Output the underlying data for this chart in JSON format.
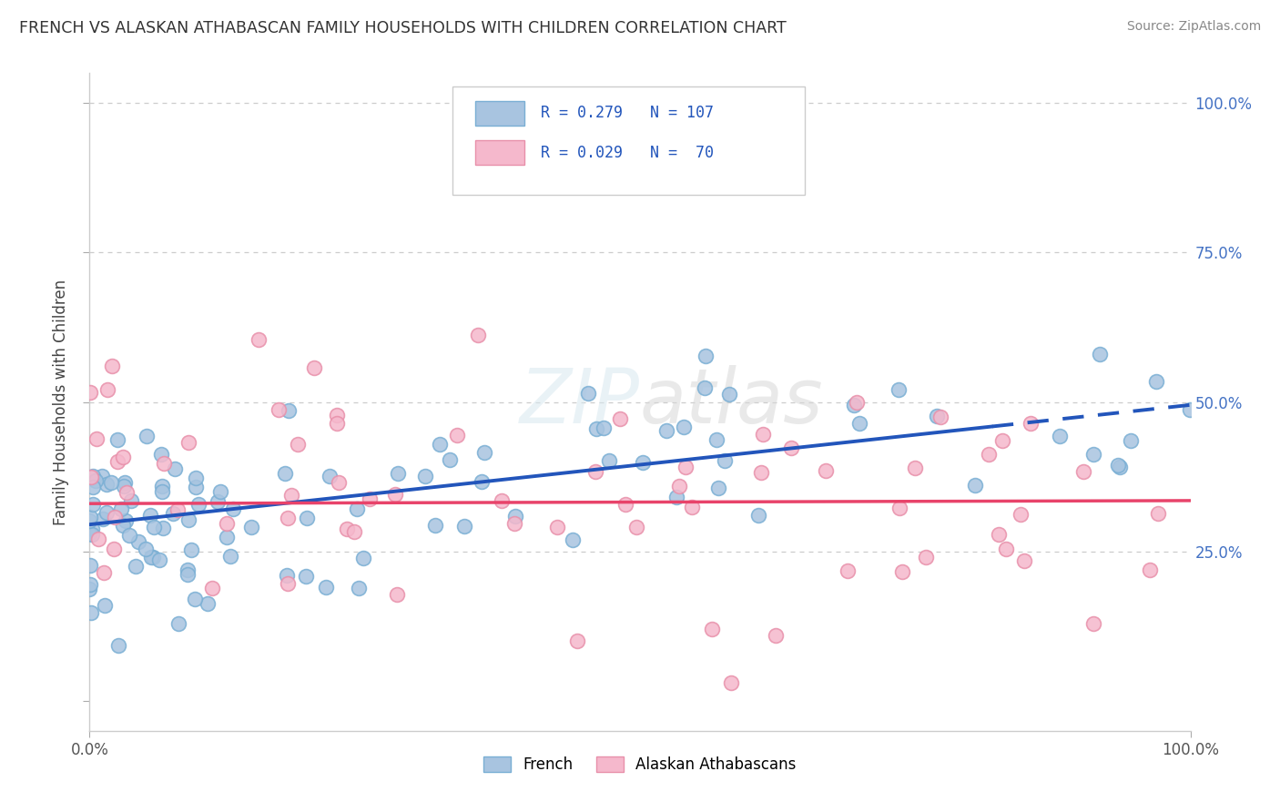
{
  "title": "FRENCH VS ALASKAN ATHABASCAN FAMILY HOUSEHOLDS WITH CHILDREN CORRELATION CHART",
  "source": "Source: ZipAtlas.com",
  "ylabel": "Family Households with Children",
  "french_color": "#a8c4e0",
  "french_edge_color": "#7aafd4",
  "athabascan_color": "#f5b8cc",
  "athabascan_edge_color": "#e890aa",
  "french_line_color": "#2255bb",
  "athabascan_line_color": "#e8436a",
  "french_R": 0.279,
  "french_N": 107,
  "athabascan_R": 0.029,
  "athabascan_N": 70,
  "watermark": "ZIPAtlas",
  "legend_french": "French",
  "legend_athabascan": "Alaskan Athabascans",
  "french_line_solid_end": 0.82,
  "french_line_start_y": 0.295,
  "french_line_end_y": 0.495,
  "athabascan_line_y": 0.33,
  "xlim": [
    0.0,
    1.0
  ],
  "ylim": [
    -0.05,
    1.05
  ],
  "yticks": [
    0.0,
    0.25,
    0.5,
    0.75,
    1.0
  ],
  "ytick_labels_right": [
    "",
    "25.0%",
    "50.0%",
    "75.0%",
    "100.0%"
  ],
  "xticks": [
    0.0,
    1.0
  ],
  "xtick_labels": [
    "0.0%",
    "100.0%"
  ]
}
